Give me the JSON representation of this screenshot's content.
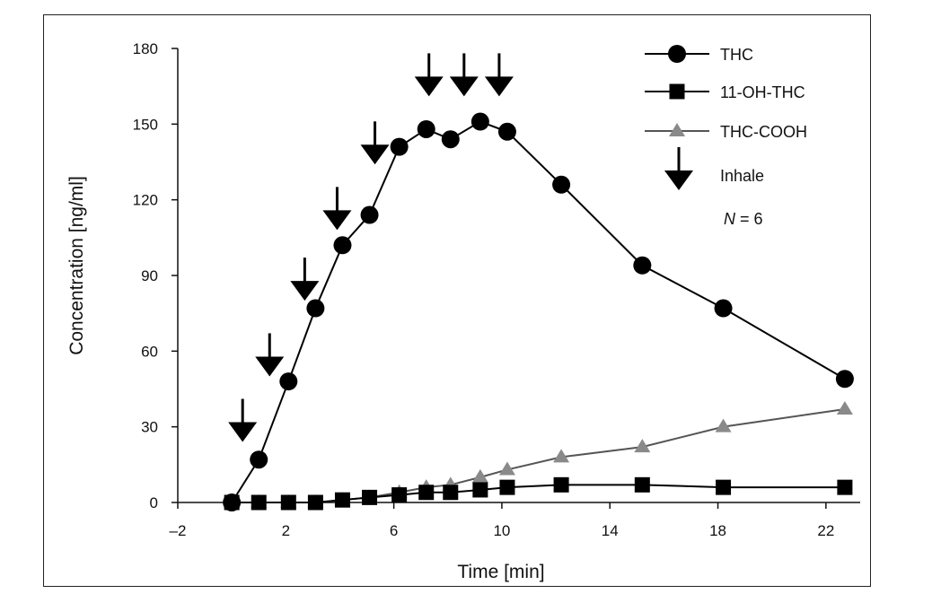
{
  "chart_data": {
    "type": "line",
    "title": "",
    "xlabel": "Time [min]",
    "ylabel": "Concentration [ng/ml]",
    "xlim": [
      -2,
      24
    ],
    "ylim": [
      0,
      180
    ],
    "xticks": [
      -2,
      2,
      6,
      10,
      14,
      18,
      22
    ],
    "xtick_labels": [
      "–2",
      "2",
      "6",
      "10",
      "14",
      "18",
      "22"
    ],
    "yticks": [
      0,
      30,
      60,
      90,
      120,
      150,
      180
    ],
    "ytick_labels": [
      "0",
      "30",
      "60",
      "90",
      "120",
      "150",
      "180"
    ],
    "grid": false,
    "legend_position": "top-right",
    "series": [
      {
        "name": "THC",
        "marker": "circle",
        "color": "#000000",
        "x": [
          0,
          1,
          2.1,
          3.1,
          4.1,
          5.1,
          6.2,
          7.2,
          8.1,
          9.2,
          10.2,
          12.2,
          15.2,
          18.2,
          22.7
        ],
        "y": [
          0,
          17,
          48,
          77,
          102,
          114,
          141,
          148,
          144,
          151,
          147,
          126,
          94,
          77,
          49
        ]
      },
      {
        "name": "11-OH-THC",
        "marker": "square",
        "color": "#000000",
        "x": [
          0,
          1,
          2.1,
          3.1,
          4.1,
          5.1,
          6.2,
          7.2,
          8.1,
          9.2,
          10.2,
          12.2,
          15.2,
          18.2,
          22.7
        ],
        "y": [
          0,
          0,
          0,
          0,
          1,
          2,
          3,
          4,
          4,
          5,
          6,
          7,
          7,
          6,
          6
        ]
      },
      {
        "name": "THC-COOH",
        "marker": "triangle",
        "color": "#8a8a8a",
        "x": [
          0,
          1,
          2.1,
          3.1,
          4.1,
          5.1,
          6.2,
          7.2,
          8.1,
          9.2,
          10.2,
          12.2,
          15.2,
          18.2,
          22.7
        ],
        "y": [
          0,
          0,
          0,
          0,
          1,
          2,
          4,
          6,
          7,
          10,
          13,
          18,
          22,
          30,
          37
        ]
      }
    ],
    "inhale_arrows": {
      "name": "Inhale",
      "points": [
        {
          "x": 0.4,
          "y": 24
        },
        {
          "x": 1.4,
          "y": 50
        },
        {
          "x": 2.7,
          "y": 80
        },
        {
          "x": 3.9,
          "y": 108
        },
        {
          "x": 5.3,
          "y": 134
        },
        {
          "x": 7.3,
          "y": 161
        },
        {
          "x": 8.6,
          "y": 161
        },
        {
          "x": 9.9,
          "y": 161
        }
      ]
    },
    "annotation": {
      "italic": "N",
      "rest": " = 6"
    },
    "legend": [
      "THC",
      "11-OH-THC",
      "THC-COOH",
      "Inhale"
    ]
  }
}
